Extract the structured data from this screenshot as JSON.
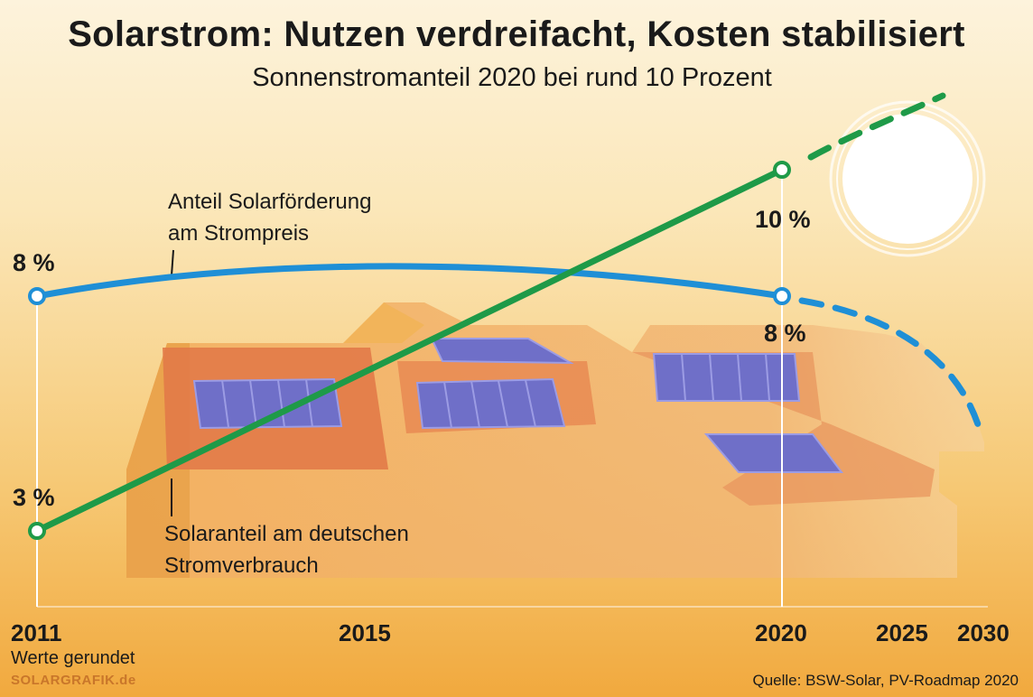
{
  "title": "Solarstrom: Nutzen verdreifacht, Kosten stabilisiert",
  "subtitle": "Sonnenstromanteil 2020 bei rund 10 Prozent",
  "footnote": "Werte gerundet",
  "brand": "SOLARGRAFIK.de",
  "source": "Quelle: BSW-Solar, PV-Roadmap 2020",
  "colors": {
    "subsidy_line": "#1f8fd6",
    "solar_line": "#1e9a48",
    "background_top": "#fdf3dc",
    "background_bottom": "#f1a93e",
    "house": "#e8965a",
    "panel": "#6f6fc8"
  },
  "decorations": [
    "sun-icon",
    "house-with-solar-panels"
  ],
  "chart_data": {
    "type": "line",
    "x_ticks": [
      "2011",
      "2015",
      "2020",
      "2025",
      "2030"
    ],
    "series": [
      {
        "name": "Anteil Solarförderung am Strompreis",
        "name_line1": "Anteil Solarförderung",
        "name_line2": "am Strompreis",
        "points": [
          {
            "x": 2011,
            "y": 8
          },
          {
            "x": 2020,
            "y": 8
          }
        ],
        "projection": "2020-2030 declining (dashed)",
        "point_labels": [
          "8 %",
          "8 %"
        ]
      },
      {
        "name": "Solaranteil am deutschen Stromverbrauch",
        "name_line1": "Solaranteil am deutschen",
        "name_line2": "Stromverbrauch",
        "points": [
          {
            "x": 2011,
            "y": 3
          },
          {
            "x": 2020,
            "y": 10
          }
        ],
        "projection": "2020-2030 rising (dashed)",
        "point_labels": [
          "3 %",
          "10 %"
        ]
      }
    ],
    "grid": false,
    "legend": "inline labels"
  }
}
